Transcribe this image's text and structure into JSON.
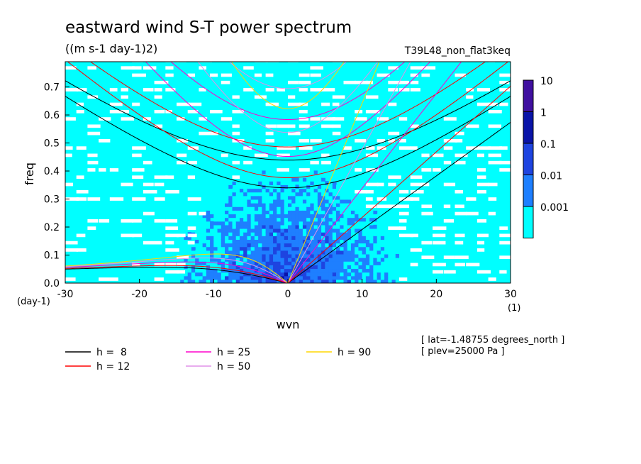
{
  "chart_data": {
    "type": "heatmap",
    "title": "eastward wind S-T power spectrum",
    "subtitle": "((m s-1 day-1)2)",
    "run_label": "T39L48_non_flat3keq",
    "xlabel": "wvn",
    "ylabel": "freq",
    "x_unit": "(1)",
    "y_unit": "(day-1)",
    "xlim": [
      -30,
      30
    ],
    "ylim": [
      0,
      0.79
    ],
    "x_ticks": [
      -30,
      -20,
      -10,
      0,
      10,
      20,
      30
    ],
    "y_ticks": [
      0.0,
      0.1,
      0.2,
      0.3,
      0.4,
      0.5,
      0.6,
      0.7
    ],
    "x_tick_labels": [
      "-30",
      "-20",
      "-10",
      "0",
      "10",
      "20",
      "30"
    ],
    "y_tick_labels": [
      "0.0",
      "0.1",
      "0.2",
      "0.3",
      "0.4",
      "0.5",
      "0.6",
      "0.7"
    ],
    "colorbar": {
      "levels": [
        0.001,
        0.01,
        0.1,
        1,
        10
      ],
      "labels": [
        "10",
        "1",
        "0.1",
        "0.01",
        "0.001"
      ],
      "colors": [
        "#00FFFF",
        "#1E7FFF",
        "#1E44E0",
        "#0A14A8",
        "#4010A0"
      ]
    },
    "dispersion_curves": [
      {
        "name": "h =  8",
        "h": 8,
        "color": "#000000"
      },
      {
        "name": "h = 12",
        "h": 12,
        "color": "#FF0000"
      },
      {
        "name": "h = 25",
        "h": 25,
        "color": "#FF00CC"
      },
      {
        "name": "h = 50",
        "h": 50,
        "color": "#E090E8"
      },
      {
        "name": "h = 90",
        "h": 90,
        "color": "#FFD700"
      }
    ],
    "annotations": [
      "[ lat=-1.48755 degrees_north ]",
      "[ plev=25000 Pa ]"
    ]
  }
}
